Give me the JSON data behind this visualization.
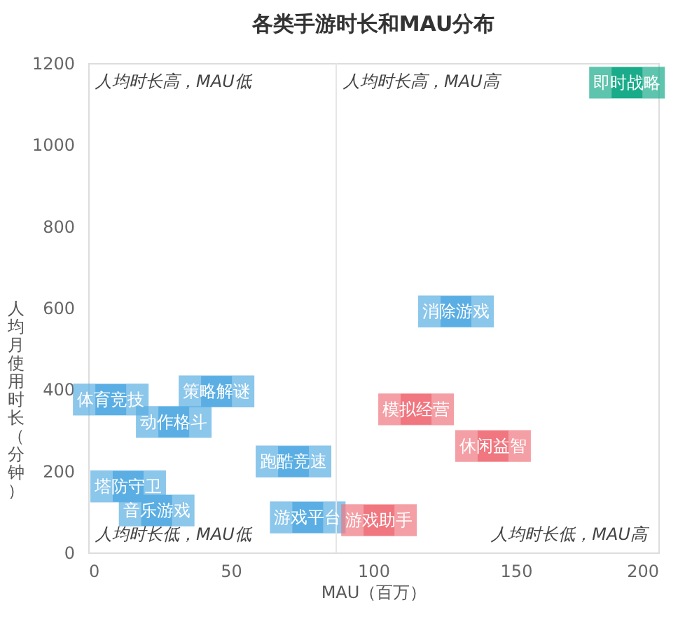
{
  "chart_data": {
    "type": "scatter",
    "title": "各类手游时长和MAU分布",
    "xlabel": "MAU（百万）",
    "ylabel": "人均月使用时长（分钟）",
    "xlim": [
      0,
      200
    ],
    "xticks": [
      0,
      50,
      100,
      150,
      200
    ],
    "ylim": [
      0,
      1200
    ],
    "yticks": [
      0,
      200,
      400,
      600,
      800,
      1000,
      1200
    ],
    "grid": false,
    "marker": "square",
    "series": [
      {
        "color": "#5aaee3",
        "x": [
          7.9,
          45,
          30,
          72,
          14,
          24,
          77,
          129
        ],
        "values": [
          375,
          395,
          320,
          223,
          162,
          103,
          86,
          591
        ]
      },
      {
        "color": "#f0767f",
        "x": [
          102,
          115,
          142
        ],
        "values": [
          79,
          351,
          261
        ]
      },
      {
        "color": "#1aab8a",
        "x": [
          189
        ],
        "values": [
          1152
        ]
      }
    ],
    "ref_lines": [
      {
        "axis": "x",
        "value": 87,
        "color": "#e6e6e6"
      }
    ],
    "annotations": [
      "人均时长高，MAU低",
      "人均时长高，MAU高",
      "人均时长低，MAU低",
      "人均时长低，MAU高",
      {
        "text": "体育竞技",
        "x": 7.9,
        "y": 375
      },
      {
        "text": "策略解谜",
        "x": 45,
        "y": 395
      },
      {
        "text": "动作格斗",
        "x": 30,
        "y": 320
      },
      {
        "text": "跑酷竞速",
        "x": 72,
        "y": 223
      },
      {
        "text": "塔防守卫",
        "x": 14,
        "y": 162
      },
      {
        "text": "音乐游戏",
        "x": 24,
        "y": 103
      },
      {
        "text": "游戏平台",
        "x": 77,
        "y": 86
      },
      {
        "text": "消除游戏",
        "x": 129,
        "y": 591
      },
      {
        "text": "游戏助手",
        "x": 102,
        "y": 79
      },
      {
        "text": "模拟经营",
        "x": 115,
        "y": 351
      },
      {
        "text": "休闲益智",
        "x": 142,
        "y": 261
      },
      {
        "text": "即时战略",
        "x": 189,
        "y": 1152
      }
    ]
  }
}
